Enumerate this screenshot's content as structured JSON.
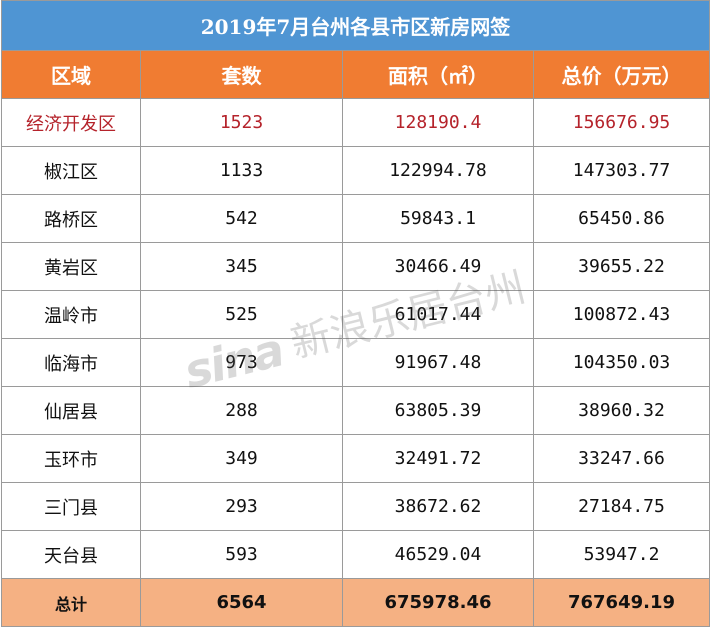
{
  "title": "2019年7月台州各县市区新房网签",
  "headers": [
    "区域",
    "套数",
    "面积（㎡）",
    "总价（万元）"
  ],
  "rows": [
    {
      "region": "经济开发区",
      "units": "1523",
      "area": "128190.4",
      "price": "156676.95"
    },
    {
      "region": "椒江区",
      "units": "1133",
      "area": "122994.78",
      "price": "147303.77"
    },
    {
      "region": "路桥区",
      "units": "542",
      "area": "59843.1",
      "price": "65450.86"
    },
    {
      "region": "黄岩区",
      "units": "345",
      "area": "30466.49",
      "price": "39655.22"
    },
    {
      "region": "温岭市",
      "units": "525",
      "area": "61017.44",
      "price": "100872.43"
    },
    {
      "region": "临海市",
      "units": "973",
      "area": "91967.48",
      "price": "104350.03"
    },
    {
      "region": "仙居县",
      "units": "288",
      "area": "63805.39",
      "price": "38960.32"
    },
    {
      "region": "玉环市",
      "units": "349",
      "area": "32491.72",
      "price": "33247.66"
    },
    {
      "region": "三门县",
      "units": "293",
      "area": "38672.62",
      "price": "27184.75"
    },
    {
      "region": "天台县",
      "units": "593",
      "area": "46529.04",
      "price": "53947.2"
    }
  ],
  "total": {
    "label": "总计",
    "units": "6564",
    "area": "675978.46",
    "price": "767649.19"
  },
  "watermark": {
    "logo": "sina",
    "text": "新浪乐居台州"
  },
  "colors": {
    "title_bg": "#4f95d3",
    "header_bg": "#f07c32",
    "total_bg": "#f5b183",
    "highlight_text": "#b5232b"
  }
}
